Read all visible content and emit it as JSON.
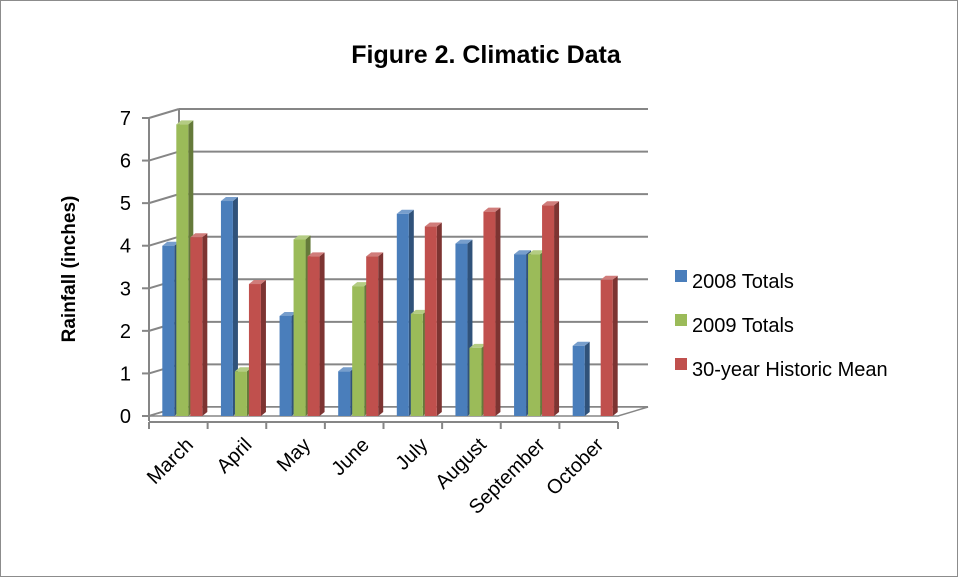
{
  "chart_data": {
    "type": "bar",
    "title": "Figure 2.  Climatic Data",
    "xlabel": "",
    "ylabel": "Rainfall (inches)",
    "ylim": [
      0,
      7
    ],
    "yticks": [
      "0",
      "1",
      "2",
      "3",
      "4",
      "5",
      "6",
      "7"
    ],
    "grid": true,
    "legend_position": "right",
    "categories": [
      "March",
      "April",
      "May",
      "June",
      "July",
      "August",
      "September",
      "October"
    ],
    "series": [
      {
        "name": "2008 Totals",
        "color": "#4a7ebb",
        "values": [
          4.0,
          5.05,
          2.35,
          1.05,
          4.75,
          4.05,
          3.8,
          1.65
        ]
      },
      {
        "name": "2009 Totals",
        "color": "#9bbb59",
        "values": [
          6.85,
          1.05,
          4.15,
          3.05,
          2.4,
          1.6,
          3.8,
          0
        ]
      },
      {
        "name": "30-year Historic Mean",
        "color": "#c0504d",
        "values": [
          4.2,
          3.1,
          3.75,
          3.75,
          4.45,
          4.8,
          4.95,
          3.2
        ]
      }
    ]
  }
}
